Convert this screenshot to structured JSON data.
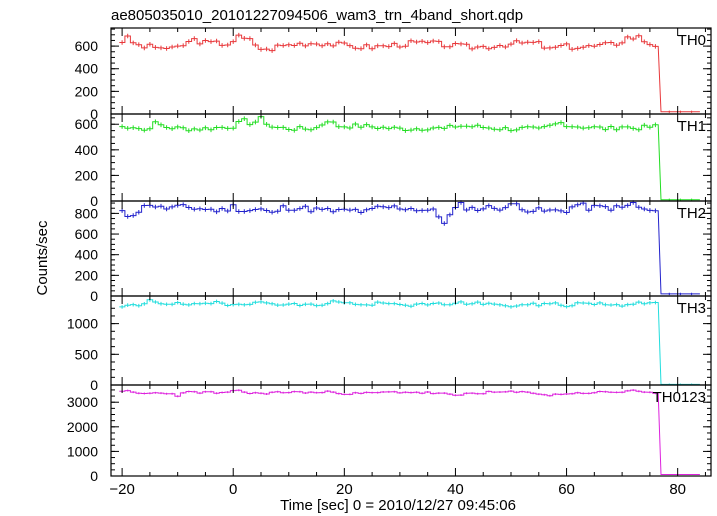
{
  "chart_data": {
    "type": "line",
    "title": "ae805035010_20101227094506_wam3_trn_4band_short.qdp",
    "xlabel": "Time [sec] 0 = 2010/12/27 09:45:06",
    "ylabel": "Counts/sec",
    "xlim": [
      -22,
      86
    ],
    "x_ticks": [
      -20,
      0,
      20,
      40,
      60,
      80
    ],
    "x_tick_labels": [
      "−20",
      "0",
      "20",
      "40",
      "60",
      "80"
    ],
    "drop_x": 77,
    "drop_end_x": 84,
    "panels": [
      {
        "name": "TH0",
        "color": "#e8383b",
        "ylim": [
          0,
          760
        ],
        "y_ticks": [
          0,
          200,
          400,
          600
        ],
        "y_tick_labels": [
          "0",
          "200",
          "400",
          "600"
        ],
        "base": 610,
        "amp": 40,
        "jitter": 25,
        "seed": 3,
        "peaks": [
          [
            -19,
            55
          ],
          [
            1,
            70
          ],
          [
            3,
            50
          ],
          [
            -7,
            35
          ],
          [
            71,
            45
          ],
          [
            73,
            50
          ]
        ],
        "dips": [
          [
            57,
            45
          ],
          [
            -11,
            30
          ],
          [
            6,
            30
          ]
        ],
        "tail": 20,
        "error": 20
      },
      {
        "name": "TH1",
        "color": "#22dd22",
        "ylim": [
          0,
          680
        ],
        "y_ticks": [
          0,
          200,
          400,
          600
        ],
        "y_tick_labels": [
          "0",
          "200",
          "400",
          "600"
        ],
        "base": 575,
        "amp": 25,
        "jitter": 18,
        "seed": 7,
        "peaks": [
          [
            2,
            40
          ],
          [
            5,
            60
          ],
          [
            17,
            55
          ],
          [
            -14,
            25
          ],
          [
            59,
            25
          ],
          [
            70,
            20
          ]
        ],
        "dips": [
          [
            -16,
            35
          ],
          [
            38,
            20
          ],
          [
            55,
            20
          ]
        ],
        "tail": 10,
        "error": 18
      },
      {
        "name": "TH2",
        "color": "#2222cc",
        "ylim": [
          0,
          920
        ],
        "y_ticks": [
          0,
          200,
          400,
          600,
          800
        ],
        "y_tick_labels": [
          "0",
          "200",
          "400",
          "600",
          "800"
        ],
        "base": 840,
        "amp": 40,
        "jitter": 30,
        "seed": 11,
        "peaks": [
          [
            -15,
            60
          ],
          [
            0,
            45
          ],
          [
            41,
            50
          ],
          [
            51,
            40
          ],
          [
            62,
            45
          ],
          [
            72,
            60
          ]
        ],
        "dips": [
          [
            38,
            100
          ],
          [
            7,
            55
          ],
          [
            -19,
            40
          ],
          [
            24,
            30
          ]
        ],
        "tail": 20,
        "error": 22
      },
      {
        "name": "TH3",
        "color": "#22dddd",
        "ylim": [
          0,
          1450
        ],
        "y_ticks": [
          0,
          500,
          1000
        ],
        "y_tick_labels": [
          "0",
          "500",
          "1000"
        ],
        "base": 1320,
        "amp": 35,
        "jitter": 25,
        "seed": 19,
        "peaks": [
          [
            -15,
            60
          ],
          [
            -3,
            45
          ],
          [
            18,
            50
          ],
          [
            73,
            60
          ]
        ],
        "dips": [
          [
            -20,
            50
          ],
          [
            -17,
            60
          ],
          [
            24,
            50
          ],
          [
            49,
            40
          ],
          [
            60,
            45
          ]
        ],
        "tail": 10,
        "error": 30
      },
      {
        "name": "TH0123",
        "color": "#dd22dd",
        "ylim": [
          0,
          3700
        ],
        "y_ticks": [
          0,
          1000,
          2000,
          3000
        ],
        "y_tick_labels": [
          "0",
          "1000",
          "2000",
          "3000"
        ],
        "base": 3380,
        "amp": 70,
        "jitter": 45,
        "seed": 23,
        "peaks": [
          [
            1,
            150
          ],
          [
            -19,
            90
          ],
          [
            72,
            120
          ],
          [
            18,
            80
          ]
        ],
        "dips": [
          [
            -10,
            120
          ],
          [
            40,
            100
          ],
          [
            57,
            90
          ]
        ],
        "tail": 60,
        "error": 40
      }
    ]
  }
}
